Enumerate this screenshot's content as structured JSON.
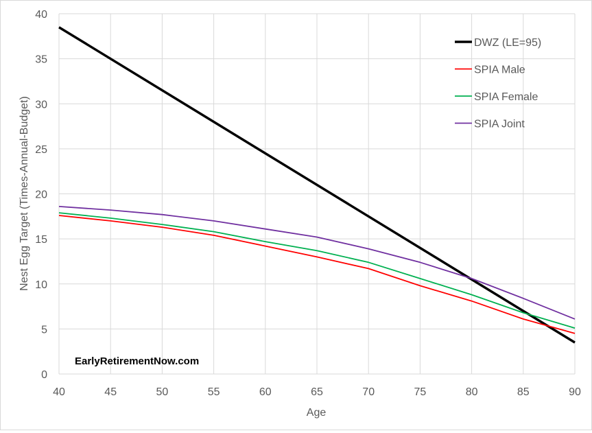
{
  "chart_data": {
    "type": "line",
    "xlabel": "Age",
    "ylabel": "Nest Egg Target (Times-Annual-Budget)",
    "xlim": [
      40,
      90
    ],
    "ylim": [
      0,
      40
    ],
    "xticks": [
      40,
      45,
      50,
      55,
      60,
      65,
      70,
      75,
      80,
      85,
      90
    ],
    "yticks": [
      0,
      5,
      10,
      15,
      20,
      25,
      30,
      35,
      40
    ],
    "grid": true,
    "legend_position": "top-right",
    "annotation": "EarlyRetirementNow.com",
    "series": [
      {
        "name": "DWZ (LE=95)",
        "color": "#000000",
        "x": [
          40,
          90
        ],
        "y": [
          38.5,
          3.5
        ]
      },
      {
        "name": "SPIA Male",
        "color": "#ff0000",
        "x": [
          40,
          45,
          50,
          55,
          60,
          65,
          70,
          75,
          80,
          85,
          90
        ],
        "y": [
          17.6,
          17.0,
          16.3,
          15.4,
          14.2,
          13.0,
          11.7,
          9.8,
          8.1,
          6.1,
          4.5
        ]
      },
      {
        "name": "SPIA Female",
        "color": "#00b050",
        "x": [
          40,
          45,
          50,
          55,
          60,
          65,
          70,
          75,
          80,
          85,
          90
        ],
        "y": [
          17.9,
          17.3,
          16.6,
          15.8,
          14.7,
          13.7,
          12.4,
          10.6,
          8.8,
          6.8,
          5.1
        ]
      },
      {
        "name": "SPIA Joint",
        "color": "#7030a0",
        "x": [
          40,
          45,
          50,
          55,
          60,
          65,
          70,
          75,
          80,
          85,
          90
        ],
        "y": [
          18.6,
          18.2,
          17.7,
          17.0,
          16.1,
          15.2,
          13.9,
          12.4,
          10.6,
          8.4,
          6.1
        ]
      }
    ]
  }
}
